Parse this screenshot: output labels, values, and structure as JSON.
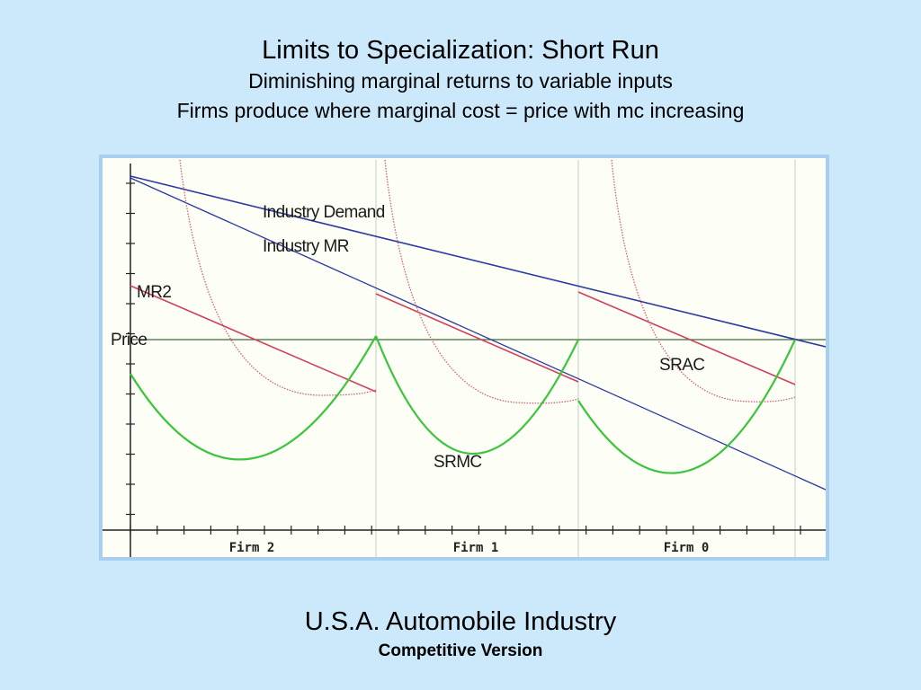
{
  "header": {
    "title": "Limits to Specialization: Short Run",
    "line2": "Diminishing marginal returns to variable inputs",
    "line3": "Firms produce where marginal cost = price with mc increasing"
  },
  "diagram": {
    "labels": {
      "industry_demand": "Industry Demand",
      "industry_mr": "Industry MR",
      "mr2": "MR2",
      "price": "Price",
      "srac": "SRAC",
      "srmc": "SRMC"
    },
    "firms": [
      "Firm 2",
      "Firm 1",
      "Firm 0"
    ],
    "colors": {
      "demand": "#2b3a9e",
      "marginal_revenue": "#d0405a",
      "srac": "#d0607a",
      "srmc": "#3cc43c",
      "price_line": "#3d6b35",
      "axis": "#222222",
      "divider": "#cfd8cf"
    }
  },
  "footer": {
    "title": "U.S.A. Automobile Industry",
    "subtitle": "Competitive Version"
  }
}
